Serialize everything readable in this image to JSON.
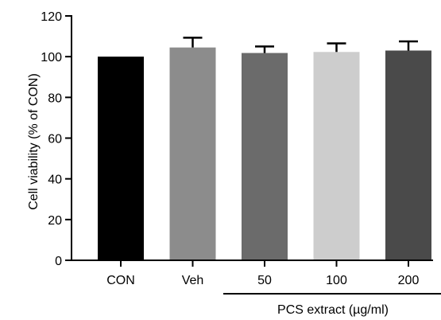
{
  "chart_data": {
    "type": "bar",
    "categories": [
      "CON",
      "Veh",
      "50",
      "100",
      "200"
    ],
    "values": [
      100,
      104.5,
      101.8,
      102.3,
      103
    ],
    "errors": [
      0,
      4.8,
      3.2,
      4.2,
      4.5
    ],
    "colors": [
      "#000000",
      "#8c8c8c",
      "#6b6b6b",
      "#cdcdcd",
      "#4a4a4a"
    ],
    "ylabel": "Cell viability (% of CON)",
    "ylim": [
      0,
      120
    ],
    "yticks": [
      0,
      20,
      40,
      60,
      80,
      100,
      120
    ],
    "group_label": "PCS extract (µg/ml)",
    "group_members": [
      "50",
      "100",
      "200"
    ],
    "grid": false,
    "legend": "none"
  }
}
